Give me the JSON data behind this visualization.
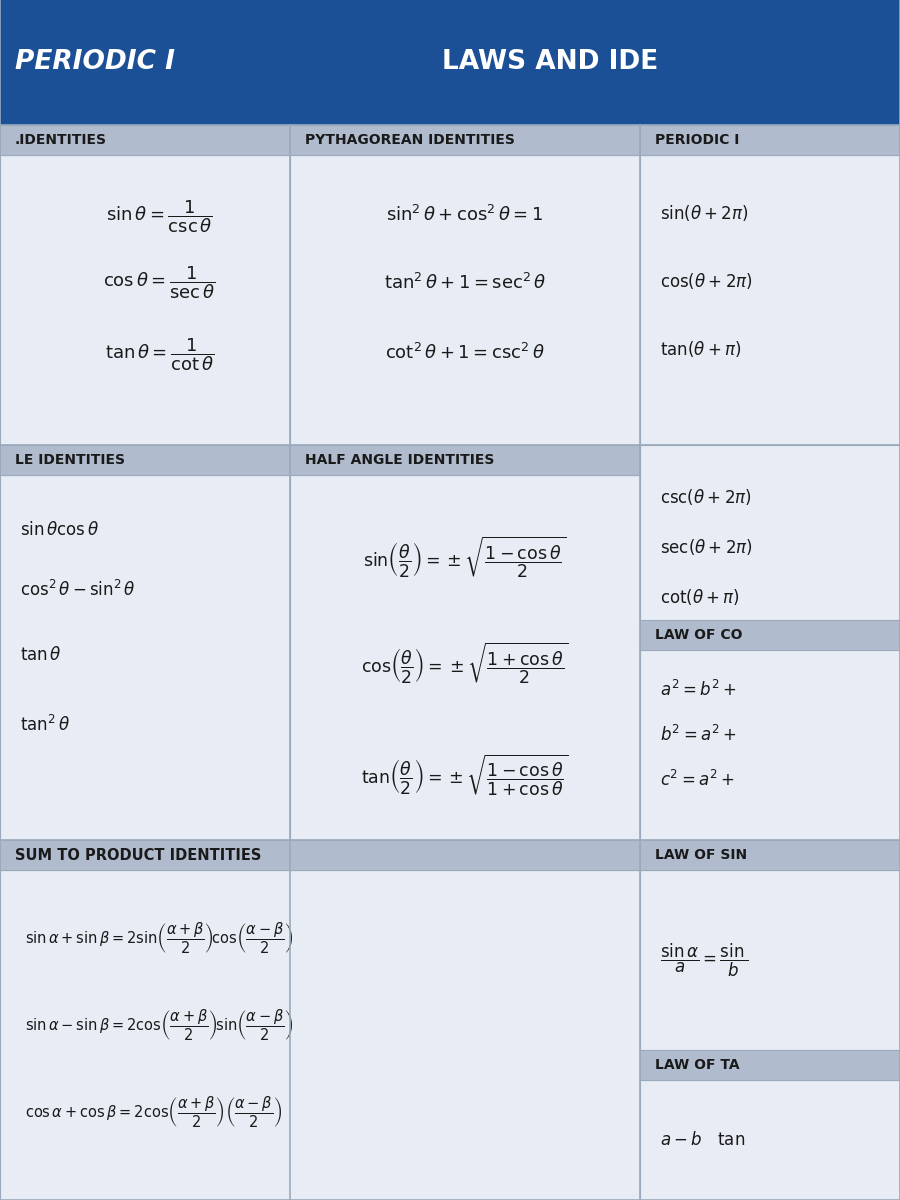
{
  "title_left": "PERIODIC I",
  "title_right": "LAWS AND IDE",
  "header_bg": "#1b4f96",
  "header_text_color": "#ffffff",
  "section_header_bg": "#b0bcce",
  "cell_bg": "#e8ecf4",
  "outer_bg": "#c8d0de",
  "border_color": "#9aaabb",
  "text_color": "#1a1a1a",
  "col1_header": ".IDENTITIES",
  "col2_header": "PYTHAGOREAN IDENTITIES",
  "col3_header": "PERIODIC I",
  "col1_header2": "LE IDENTITIES",
  "col2_header2": "HALF ANGLE IDENTITIES",
  "reciprocal_formulas": [
    "$\\sin \\theta = \\dfrac{1}{\\csc \\theta}$",
    "$\\cos \\theta = \\dfrac{1}{\\sec \\theta}$",
    "$\\tan \\theta = \\dfrac{1}{\\cot \\theta}$"
  ],
  "pythagorean_formulas": [
    "$\\sin^2 \\theta + \\cos^2 \\theta = 1$",
    "$\\tan^2 \\theta + 1 = \\sec^2 \\theta$",
    "$\\cot^2 \\theta + 1 = \\csc^2 \\theta$"
  ],
  "periodic_formulas": [
    "$\\sin(\\theta + 2\\pi)$",
    "$\\cos(\\theta + 2\\pi)$",
    "$\\tan(\\theta + \\pi)$",
    "$\\csc(\\theta + 2\\pi)$",
    "$\\sec(\\theta + 2\\pi)$",
    "$\\cot(\\theta + \\pi)$"
  ],
  "double_angle_formulas": [
    "$\\sin \\theta \\cos \\theta$",
    "$\\cos^2 \\theta - \\sin^2 \\theta$",
    "$\\tan \\theta$",
    "$\\tan^2 \\theta$"
  ],
  "half_angle_formulas": [
    "$\\sin\\!\\left(\\dfrac{\\theta}{2}\\right) = \\pm\\sqrt{\\dfrac{1-\\cos\\theta}{2}}$",
    "$\\cos\\!\\left(\\dfrac{\\theta}{2}\\right) = \\pm\\sqrt{\\dfrac{1+\\cos\\theta}{2}}$",
    "$\\tan\\!\\left(\\dfrac{\\theta}{2}\\right) = \\pm\\sqrt{\\dfrac{1-\\cos\\theta}{1+\\cos\\theta}}$"
  ],
  "law_of_cosines_header": "LAW OF CO",
  "law_of_cosines": [
    "$a^2 = b^2 +$",
    "$b^2 = a^2 +$",
    "$c^2 = a^2 +$"
  ],
  "sum_product_header": "SUM TO PRODUCT IDENTITIES",
  "sum_product_formulas": [
    "$\\sin\\alpha + \\sin\\beta = 2\\sin\\!\\left(\\dfrac{\\alpha+\\beta}{2}\\right)\\!\\cos\\!\\left(\\dfrac{\\alpha-\\beta}{2}\\right)$",
    "$\\sin\\alpha - \\sin\\beta = 2\\cos\\!\\left(\\dfrac{\\alpha+\\beta}{2}\\right)\\!\\sin\\!\\left(\\dfrac{\\alpha-\\beta}{2}\\right)$",
    "$\\cos\\alpha + \\cos\\beta = 2\\cos\\!\\left(\\dfrac{\\alpha+\\beta}{2}\\right)\\left(\\dfrac{\\alpha-\\beta}{2}\\right)$"
  ],
  "law_of_sines_header": "LAW OF SIN",
  "law_of_sines": "$\\dfrac{\\sin\\alpha}{a} = \\dfrac{\\sin}{b}$",
  "law_of_tangents_header": "LAW OF TA",
  "law_of_tangents": "$a - b \\quad \\tan$"
}
